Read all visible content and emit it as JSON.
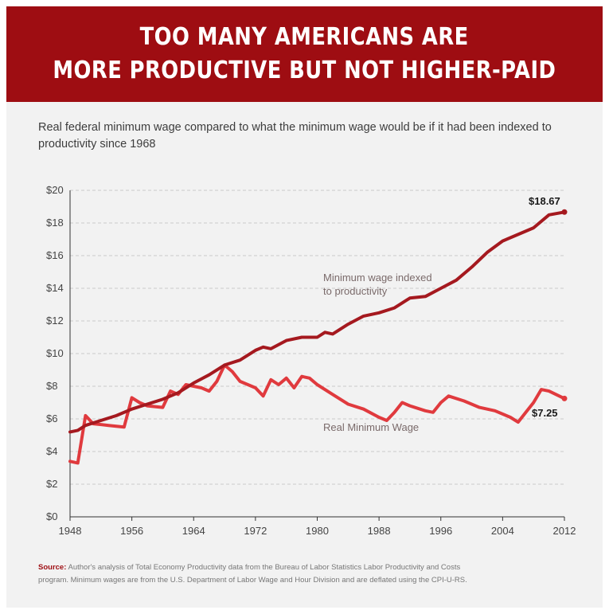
{
  "banner": {
    "line1": "TOO MANY AMERICANS ARE",
    "line2": "MORE PRODUCTIVE BUT NOT HIGHER-PAID"
  },
  "source": {
    "label": "Source:",
    "text": "Author's analysis of Total Economy Productivity data from the Bureau of Labor Statistics Labor Productivity and Costs program.  Minimum wages are from the U.S. Department of Labor Wage and Hour Division and are deflated using the CPI-U-RS."
  },
  "colors": {
    "brand": "#9e0d12",
    "indexed_line": "#a5191f",
    "real_line": "#e03a3e",
    "background": "#f2f2f2"
  },
  "chart_data": {
    "type": "line",
    "title": "Real federal minimum wage compared to what the minimum wage would be if it had been indexed to productivity since 1968",
    "xlabel": "",
    "ylabel": "",
    "xlim": [
      1948,
      2012
    ],
    "ylim": [
      0,
      20
    ],
    "x_ticks": [
      1948,
      1956,
      1964,
      1972,
      1980,
      1988,
      1996,
      2004,
      2012
    ],
    "y_ticks": [
      0,
      2,
      4,
      6,
      8,
      10,
      12,
      14,
      16,
      18,
      20
    ],
    "y_tick_labels": [
      "$0",
      "$2",
      "$4",
      "$6",
      "$8",
      "$10",
      "$12",
      "$14",
      "$16",
      "$18",
      "$20"
    ],
    "grid": "horizontal dashed",
    "series": [
      {
        "name": "Minimum wage indexed to productivity",
        "label_line1": "Minimum wage indexed",
        "label_line2": "to productivity",
        "end_label": "$18.67",
        "points": [
          [
            1948,
            5.2
          ],
          [
            1949,
            5.3
          ],
          [
            1950,
            5.6
          ],
          [
            1952,
            5.9
          ],
          [
            1954,
            6.2
          ],
          [
            1956,
            6.6
          ],
          [
            1958,
            6.9
          ],
          [
            1960,
            7.2
          ],
          [
            1962,
            7.6
          ],
          [
            1964,
            8.2
          ],
          [
            1966,
            8.7
          ],
          [
            1968,
            9.3
          ],
          [
            1970,
            9.6
          ],
          [
            1972,
            10.2
          ],
          [
            1973,
            10.4
          ],
          [
            1974,
            10.3
          ],
          [
            1976,
            10.8
          ],
          [
            1978,
            11.0
          ],
          [
            1980,
            11.0
          ],
          [
            1981,
            11.3
          ],
          [
            1982,
            11.2
          ],
          [
            1984,
            11.8
          ],
          [
            1986,
            12.3
          ],
          [
            1988,
            12.5
          ],
          [
            1990,
            12.8
          ],
          [
            1992,
            13.4
          ],
          [
            1994,
            13.5
          ],
          [
            1996,
            14.0
          ],
          [
            1998,
            14.5
          ],
          [
            2000,
            15.3
          ],
          [
            2002,
            16.2
          ],
          [
            2004,
            16.9
          ],
          [
            2006,
            17.3
          ],
          [
            2008,
            17.7
          ],
          [
            2010,
            18.5
          ],
          [
            2012,
            18.67
          ]
        ]
      },
      {
        "name": "Real Minimum Wage",
        "label_line1": "Real Minimum Wage",
        "end_label": "$7.25",
        "points": [
          [
            1948,
            3.4
          ],
          [
            1949,
            3.3
          ],
          [
            1950,
            6.2
          ],
          [
            1951,
            5.7
          ],
          [
            1953,
            5.6
          ],
          [
            1955,
            5.5
          ],
          [
            1956,
            7.3
          ],
          [
            1957,
            7.0
          ],
          [
            1958,
            6.8
          ],
          [
            1960,
            6.7
          ],
          [
            1961,
            7.7
          ],
          [
            1962,
            7.5
          ],
          [
            1963,
            8.1
          ],
          [
            1964,
            8.0
          ],
          [
            1965,
            7.9
          ],
          [
            1966,
            7.7
          ],
          [
            1967,
            8.3
          ],
          [
            1968,
            9.3
          ],
          [
            1969,
            8.9
          ],
          [
            1970,
            8.3
          ],
          [
            1972,
            7.9
          ],
          [
            1973,
            7.4
          ],
          [
            1974,
            8.4
          ],
          [
            1975,
            8.1
          ],
          [
            1976,
            8.5
          ],
          [
            1977,
            7.9
          ],
          [
            1978,
            8.6
          ],
          [
            1979,
            8.5
          ],
          [
            1980,
            8.1
          ],
          [
            1982,
            7.5
          ],
          [
            1984,
            6.9
          ],
          [
            1986,
            6.6
          ],
          [
            1988,
            6.1
          ],
          [
            1989,
            5.9
          ],
          [
            1990,
            6.4
          ],
          [
            1991,
            7.0
          ],
          [
            1992,
            6.8
          ],
          [
            1994,
            6.5
          ],
          [
            1995,
            6.4
          ],
          [
            1996,
            7.0
          ],
          [
            1997,
            7.4
          ],
          [
            1999,
            7.1
          ],
          [
            2001,
            6.7
          ],
          [
            2003,
            6.5
          ],
          [
            2005,
            6.1
          ],
          [
            2006,
            5.8
          ],
          [
            2007,
            6.4
          ],
          [
            2008,
            7.0
          ],
          [
            2009,
            7.8
          ],
          [
            2010,
            7.7
          ],
          [
            2012,
            7.25
          ]
        ]
      }
    ]
  }
}
